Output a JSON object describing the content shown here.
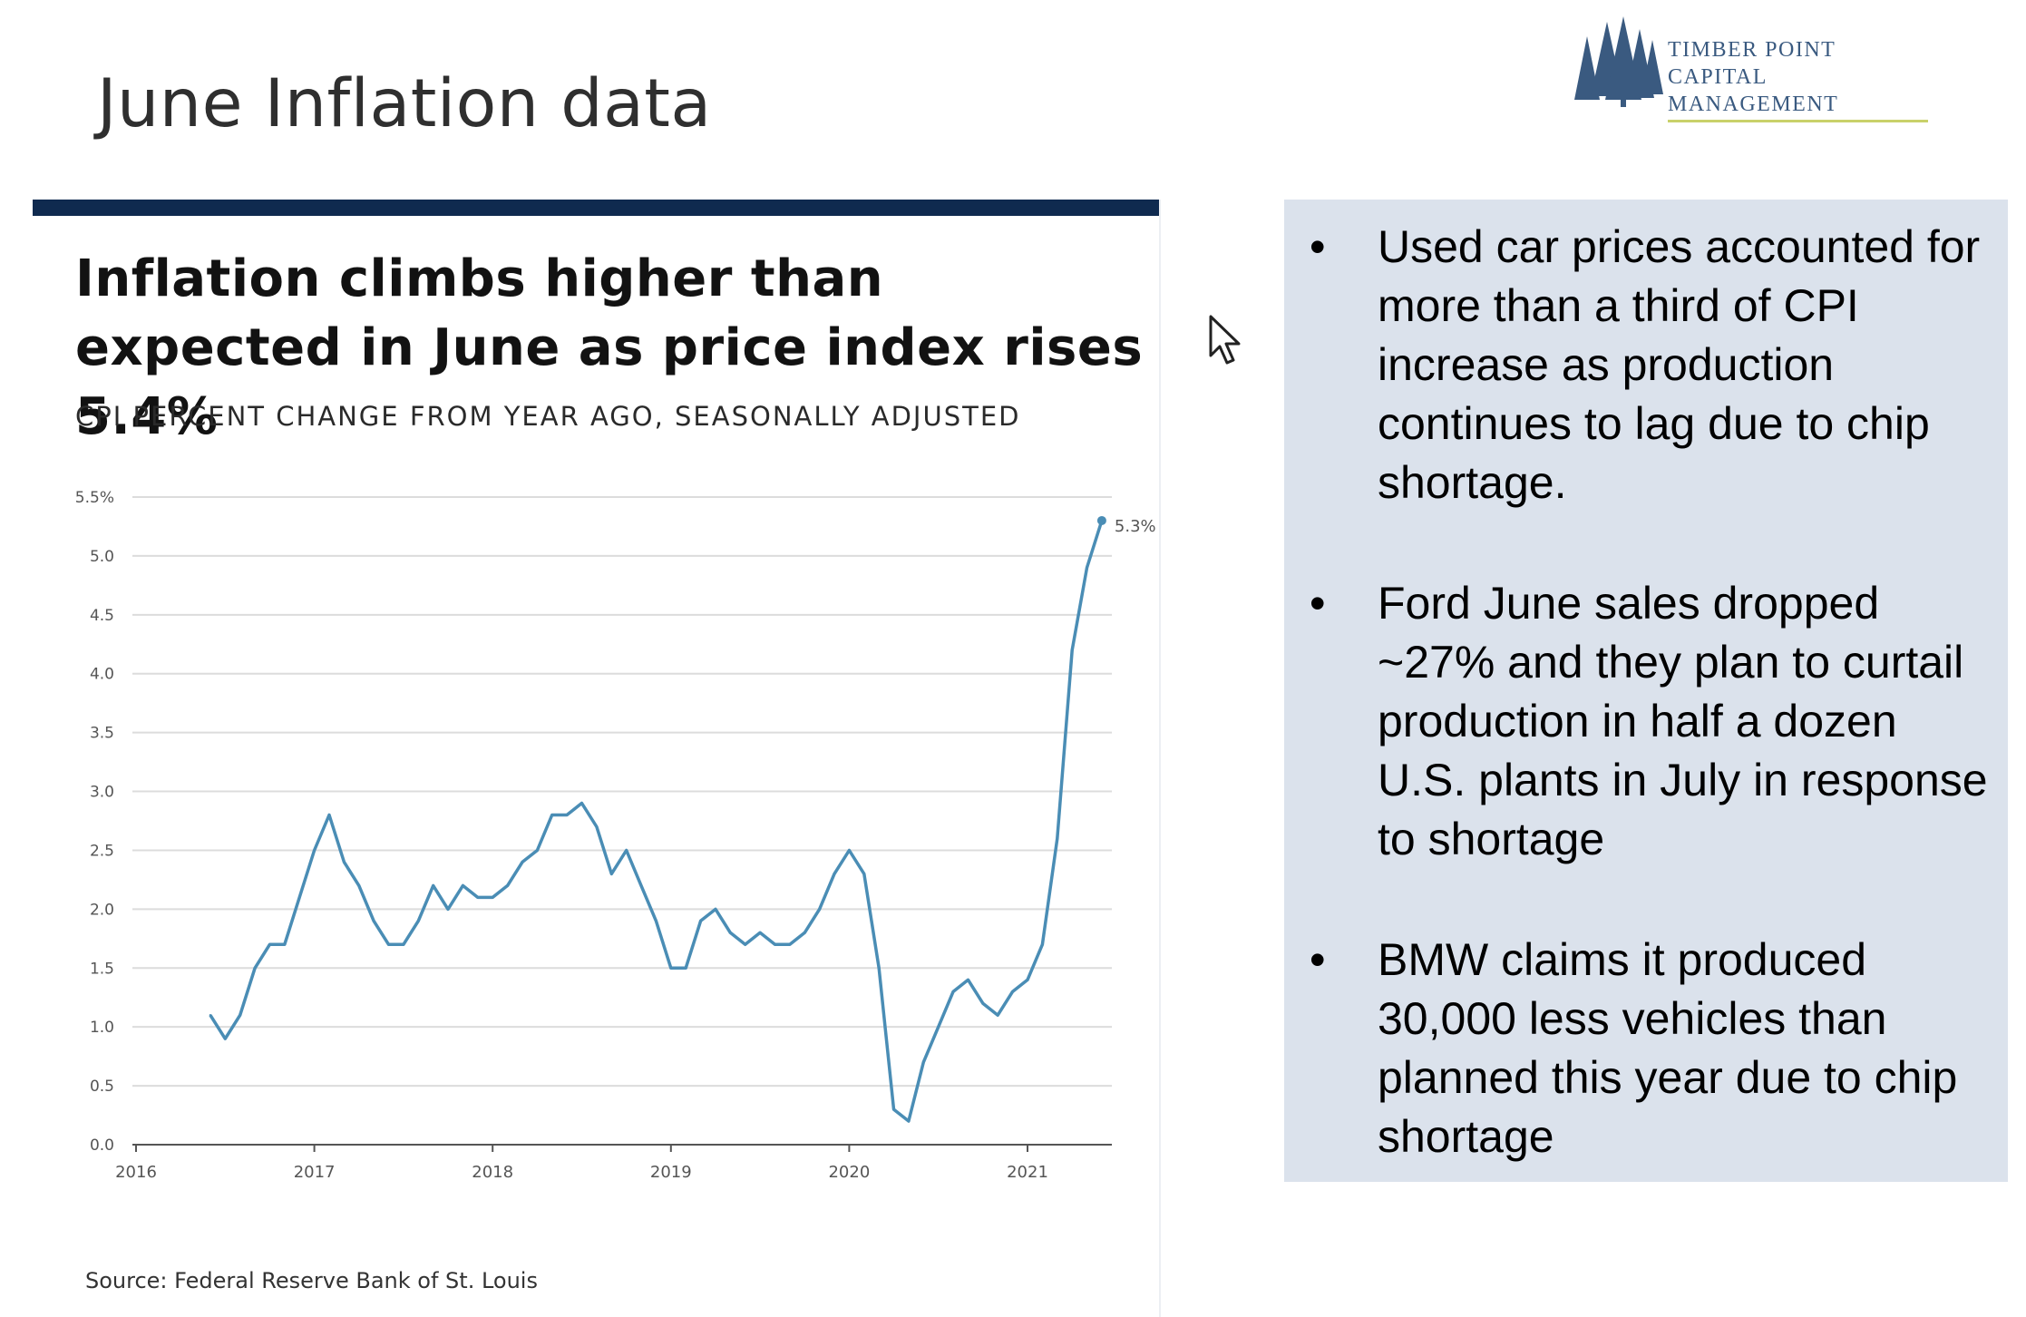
{
  "slide": {
    "title": "June Inflation data"
  },
  "logo": {
    "line1": "TIMBER POINT",
    "line2": "CAPITAL MANAGEMENT",
    "colors": {
      "tree": "#3a5a80",
      "underline": "#c9d16a"
    }
  },
  "article": {
    "headline": "Inflation climbs higher than expected in June as price index rises 5.4%",
    "subtitle": "CPI PERCENT CHANGE FROM YEAR AGO, SEASONALLY ADJUSTED",
    "source": "Source: Federal Reserve Bank of St. Louis",
    "bar_color": "#0f2a4f"
  },
  "chart_data": {
    "type": "line",
    "title": "",
    "xlabel": "",
    "ylabel": "",
    "grid": true,
    "x_ticks": [
      "2016",
      "2017",
      "2018",
      "2019",
      "2020",
      "2021"
    ],
    "y_ticks": [
      "0.0",
      "0.5",
      "1.0",
      "1.5",
      "2.0",
      "2.5",
      "3.0",
      "3.5",
      "4.0",
      "4.5",
      "5.0",
      "5.5%"
    ],
    "xlim": [
      "2016-01",
      "2021-08"
    ],
    "ylim": [
      0,
      5.5
    ],
    "end_label": "5.3%",
    "line_color": "#4a8db5",
    "series": [
      {
        "x": [
          "2016-06",
          "2016-07",
          "2016-08",
          "2016-09",
          "2016-10",
          "2016-11",
          "2016-12",
          "2017-01",
          "2017-02",
          "2017-03",
          "2017-04",
          "2017-05",
          "2017-06",
          "2017-07",
          "2017-08",
          "2017-09",
          "2017-10",
          "2017-11",
          "2017-12",
          "2018-01",
          "2018-02",
          "2018-03",
          "2018-04",
          "2018-05",
          "2018-06",
          "2018-07",
          "2018-08",
          "2018-09",
          "2018-10",
          "2018-11",
          "2018-12",
          "2019-01",
          "2019-02",
          "2019-03",
          "2019-04",
          "2019-05",
          "2019-06",
          "2019-07",
          "2019-08",
          "2019-09",
          "2019-10",
          "2019-11",
          "2019-12",
          "2020-01",
          "2020-02",
          "2020-03",
          "2020-04",
          "2020-05",
          "2020-06",
          "2020-07",
          "2020-08",
          "2020-09",
          "2020-10",
          "2020-11",
          "2020-12",
          "2021-01",
          "2021-02",
          "2021-03",
          "2021-04",
          "2021-05",
          "2021-06"
        ],
        "values": [
          1.1,
          0.9,
          1.1,
          1.5,
          1.7,
          1.7,
          2.1,
          2.5,
          2.8,
          2.4,
          2.2,
          1.9,
          1.7,
          1.7,
          1.9,
          2.2,
          2.0,
          2.2,
          2.1,
          2.1,
          2.2,
          2.4,
          2.5,
          2.8,
          2.8,
          2.9,
          2.7,
          2.3,
          2.5,
          2.2,
          1.9,
          1.5,
          1.5,
          1.9,
          2.0,
          1.8,
          1.7,
          1.8,
          1.7,
          1.7,
          1.8,
          2.0,
          2.3,
          2.5,
          2.3,
          1.5,
          0.3,
          0.2,
          0.7,
          1.0,
          1.3,
          1.4,
          1.2,
          1.1,
          1.3,
          1.4,
          1.7,
          2.6,
          4.2,
          4.9,
          5.3
        ]
      }
    ]
  },
  "notes": [
    {
      "bullet": "•",
      "text": "Used car prices accounted for more than a third of CPI increase as production continues to lag due to chip shortage."
    },
    {
      "bullet": "•",
      "text": "Ford June sales dropped ~27% and they plan to curtail production in half a dozen U.S. plants in July in response to shortage"
    },
    {
      "bullet": "•",
      "text": "BMW claims it produced 30,000 less vehicles than planned this year due to chip shortage"
    }
  ],
  "cursor": {
    "icon": "mouse-pointer-icon"
  }
}
